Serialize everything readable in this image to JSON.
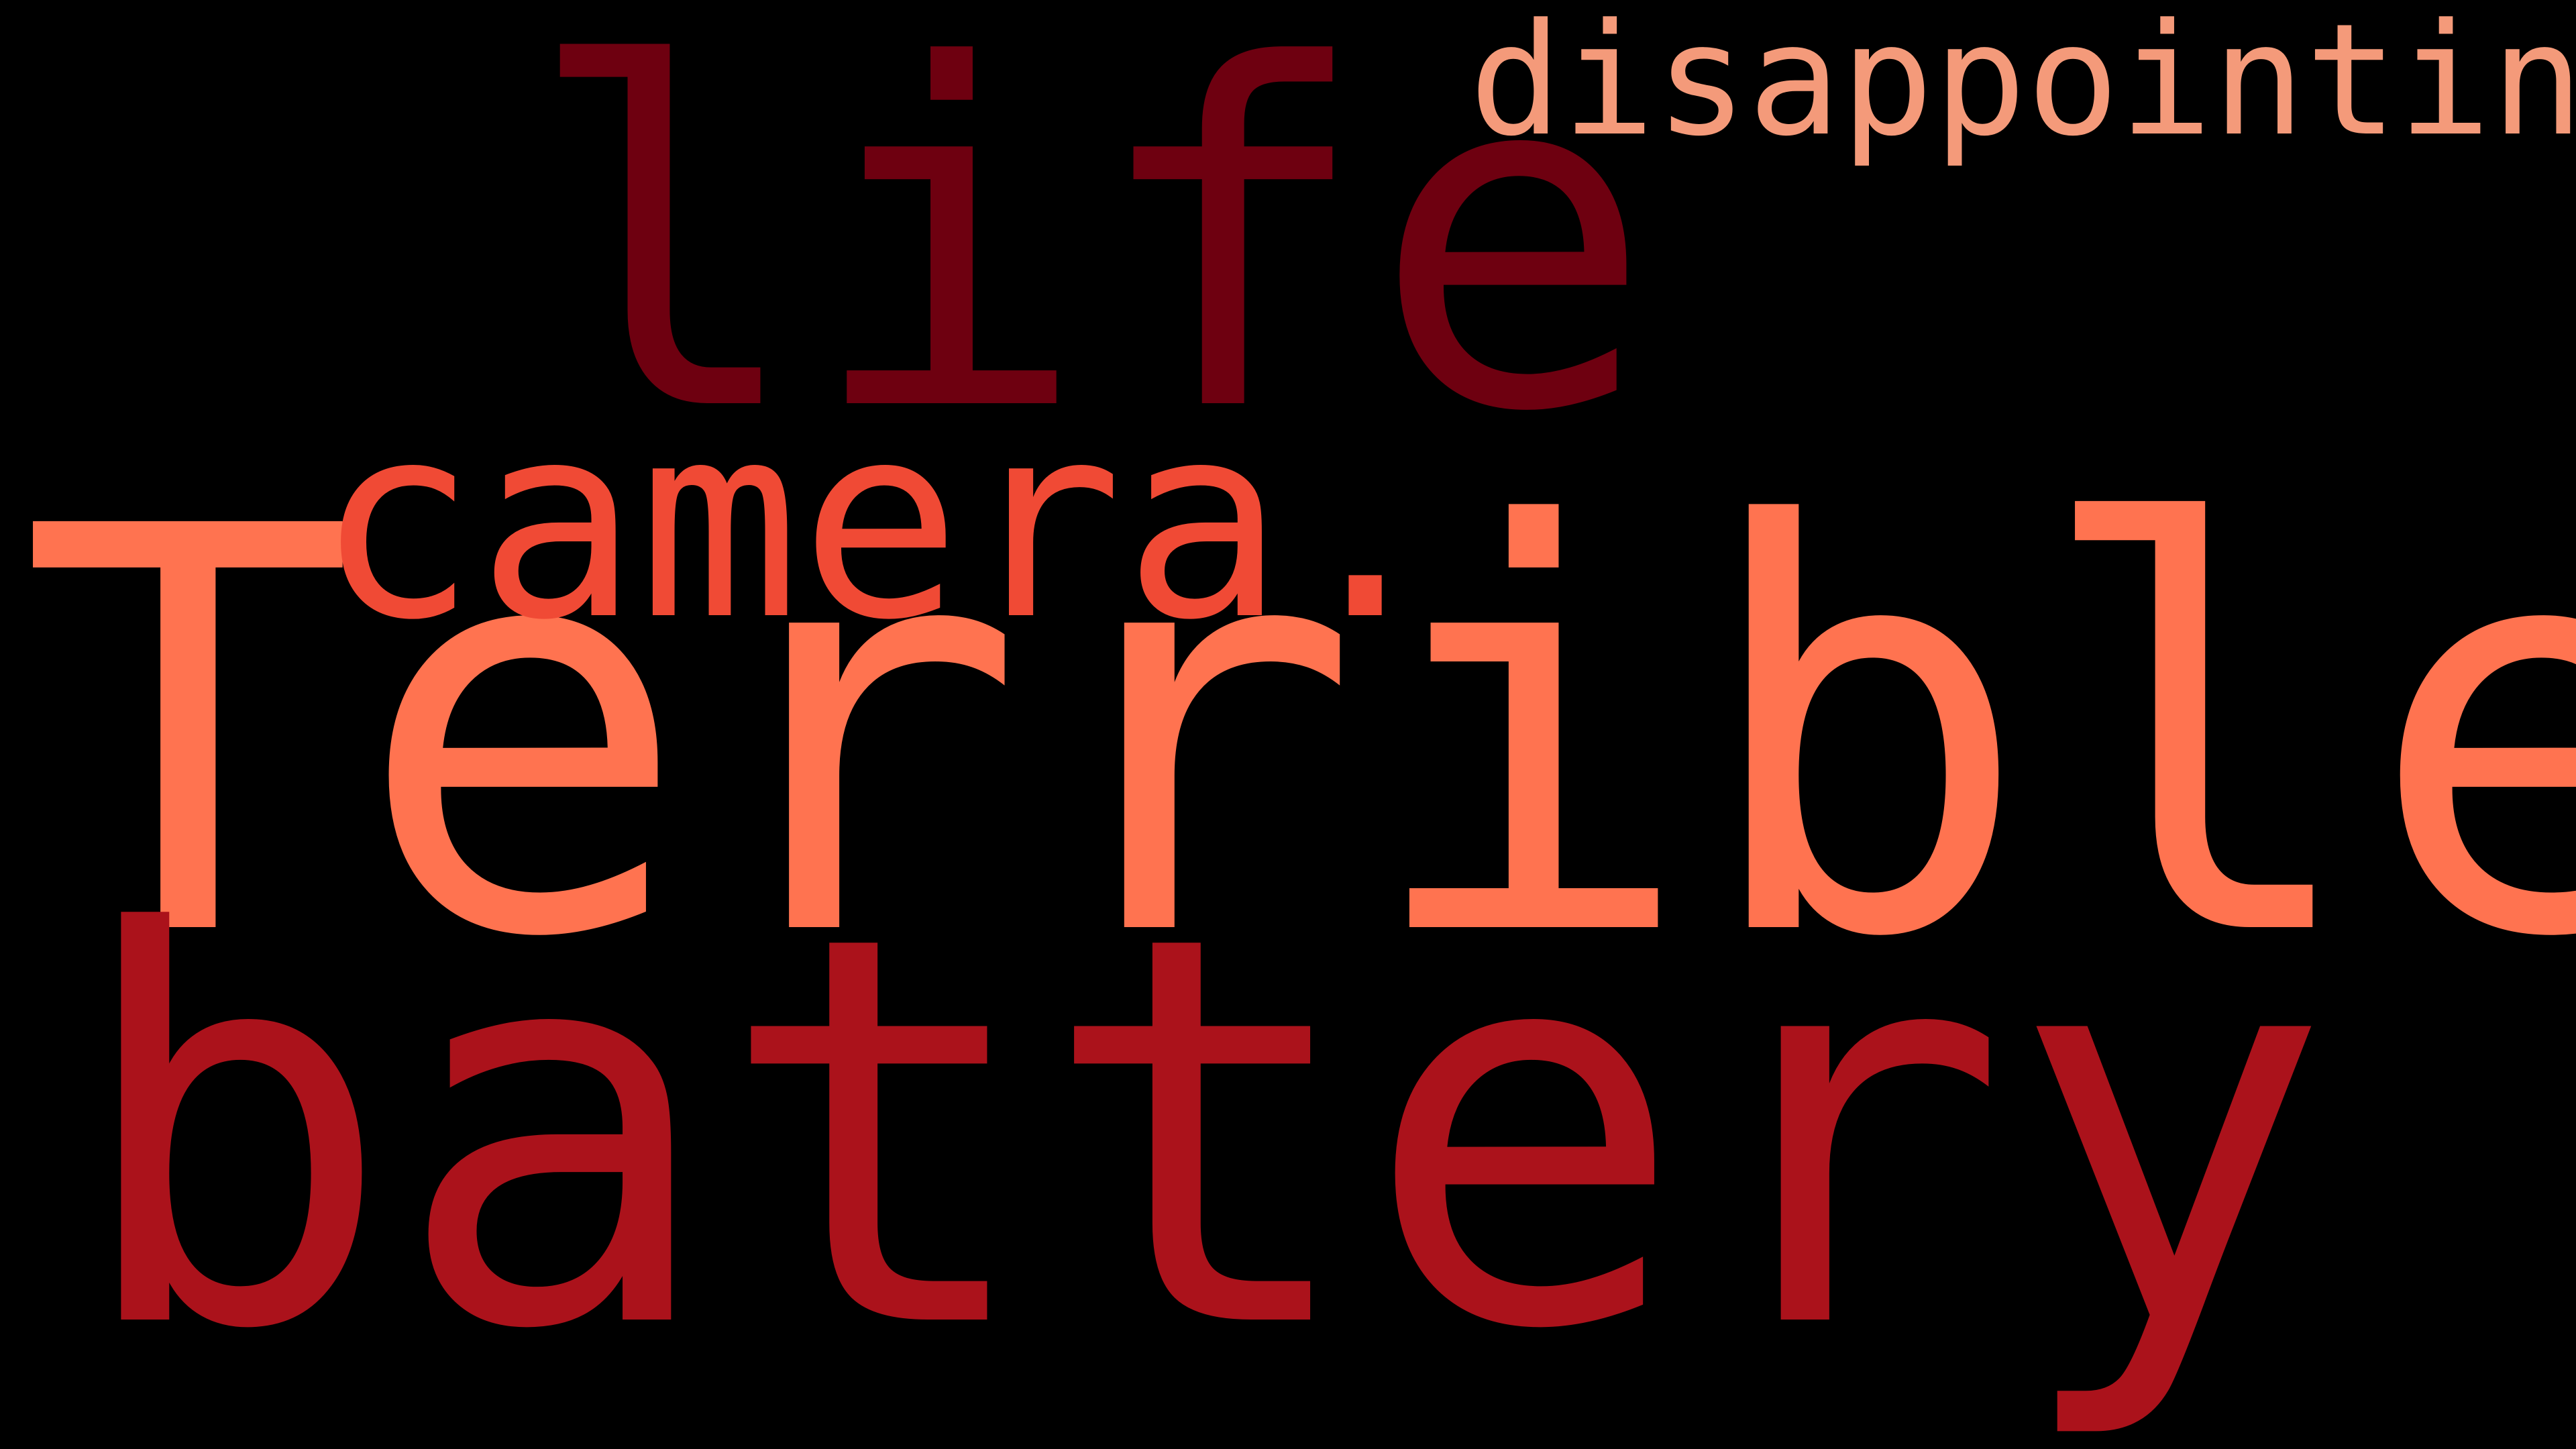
{
  "background_color": "#000000",
  "words": {
    "terrible": {
      "text": "Terrible",
      "color": "#ff7350"
    },
    "battery": {
      "text": "battery",
      "color": "#ab121b"
    },
    "life": {
      "text": "life",
      "color": "#6e0010"
    },
    "camera": {
      "text": "camera.",
      "color": "#f04a35"
    },
    "disappointing": {
      "text": "disappointing",
      "color": "#f49a7a"
    }
  }
}
